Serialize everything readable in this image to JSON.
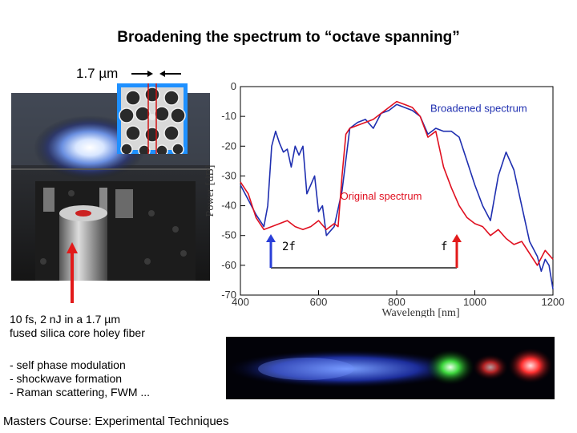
{
  "slide": {
    "title": "Broadening the spectrum to “octave spanning”",
    "fiber_core_label": "1.7 µm",
    "caption_lines": [
      "10 fs, 2 nJ in a 1.7 µm",
      "fused silica core holey fiber"
    ],
    "effects": [
      "- self phase modulation",
      "- shockwave formation",
      "- Raman scattering, FWM ..."
    ],
    "footer": "Masters Course: Experimental Techniques"
  },
  "colors": {
    "broadened": "#1f2fb0",
    "original": "#e01020",
    "arrow_red": "#e21a1a",
    "arrow_blue": "#2a3fd8",
    "frame_blue": "#1e90ff"
  },
  "chart_data": {
    "type": "line",
    "xlabel": "Wavelength [nm]",
    "ylabel": "Power [dB]",
    "xlim": [
      400,
      1200
    ],
    "ylim": [
      -70,
      0
    ],
    "xticks": [
      400,
      600,
      800,
      1000,
      1200
    ],
    "yticks": [
      0,
      -10,
      -20,
      -30,
      -40,
      -50,
      -60,
      -70
    ],
    "annotations": [
      "Broadened spectrum",
      "Original spectrum"
    ],
    "markers": [
      "2f",
      "f"
    ],
    "series": [
      {
        "name": "Broadened spectrum",
        "x": [
          400,
          420,
          440,
          460,
          470,
          480,
          490,
          500,
          510,
          520,
          530,
          540,
          550,
          560,
          570,
          580,
          590,
          600,
          610,
          620,
          640,
          660,
          680,
          700,
          720,
          740,
          760,
          780,
          800,
          820,
          840,
          860,
          880,
          900,
          920,
          940,
          960,
          980,
          1000,
          1020,
          1040,
          1060,
          1080,
          1100,
          1120,
          1140,
          1160,
          1170,
          1180,
          1190,
          1200
        ],
        "y": [
          -33,
          -38,
          -43,
          -47,
          -40,
          -20,
          -15,
          -19,
          -22,
          -21,
          -27,
          -20,
          -23,
          -20,
          -36,
          -33,
          -30,
          -42,
          -40,
          -50,
          -47,
          -35,
          -14,
          -12,
          -11,
          -14,
          -9,
          -8,
          -6,
          -7,
          -8,
          -10,
          -16,
          -14,
          -15,
          -15,
          -17,
          -25,
          -33,
          -40,
          -45,
          -30,
          -22,
          -28,
          -40,
          -52,
          -57,
          -62,
          -58,
          -60,
          -68
        ]
      },
      {
        "name": "Original spectrum",
        "x": [
          400,
          420,
          440,
          460,
          480,
          500,
          520,
          540,
          560,
          580,
          600,
          620,
          640,
          650,
          660,
          670,
          680,
          700,
          720,
          740,
          760,
          780,
          800,
          820,
          840,
          860,
          880,
          900,
          920,
          940,
          960,
          980,
          1000,
          1020,
          1040,
          1060,
          1080,
          1100,
          1120,
          1140,
          1160,
          1180,
          1200
        ],
        "y": [
          -32,
          -36,
          -44,
          -48,
          -47,
          -46,
          -45,
          -47,
          -48,
          -47,
          -45,
          -48,
          -46,
          -47,
          -30,
          -16,
          -14,
          -13,
          -12,
          -11,
          -9,
          -7,
          -5,
          -6,
          -7,
          -10,
          -17,
          -15,
          -27,
          -34,
          -40,
          -44,
          -46,
          -47,
          -50,
          -48,
          -51,
          -53,
          -52,
          -56,
          -60,
          -55,
          -58
        ]
      }
    ]
  }
}
